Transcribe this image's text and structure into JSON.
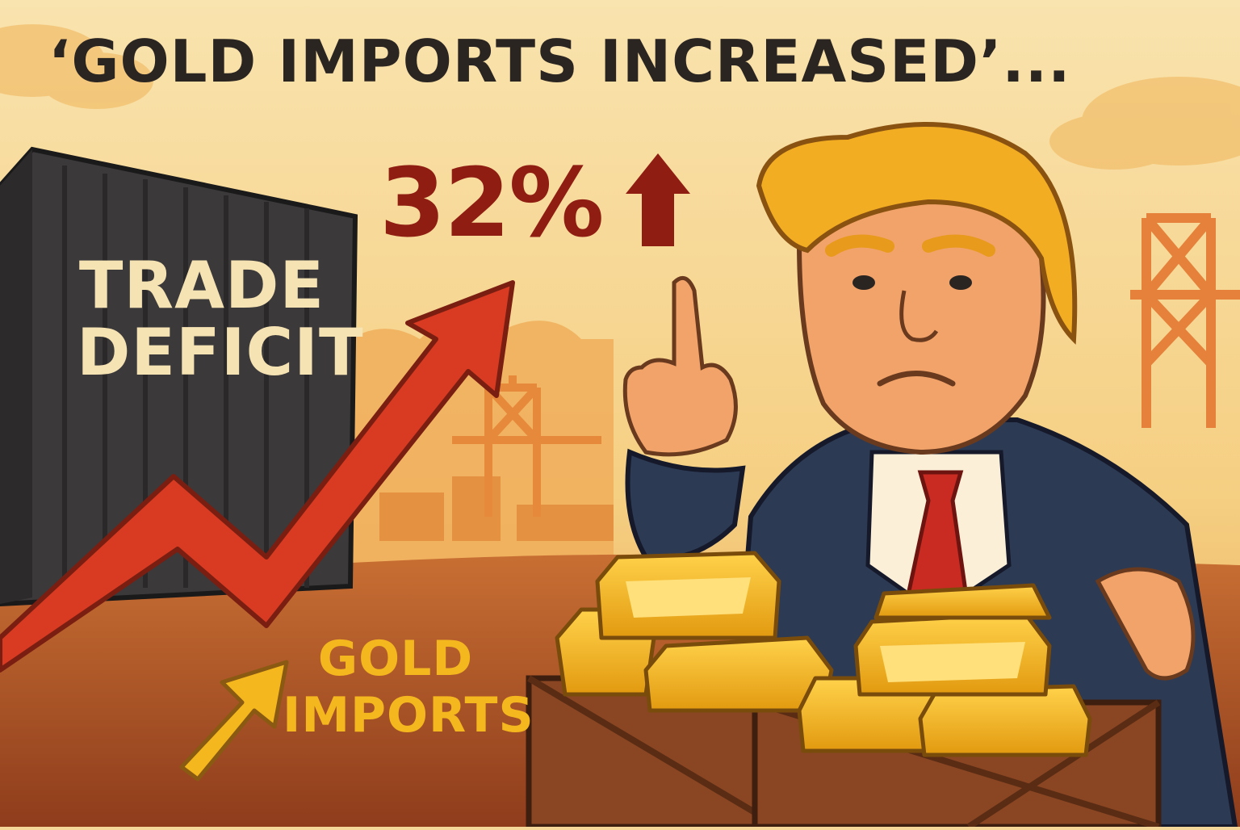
{
  "headline": "‘GOLD IMPORTS INCREASED’...",
  "stat": {
    "value": "32%",
    "direction_icon": "arrow-up-icon"
  },
  "container": {
    "line1": "TRADE",
    "line2": "DEFICIT"
  },
  "gold_label": {
    "line1": "GOLD",
    "line2": "IMPORTS"
  },
  "colors": {
    "sky": "#f6d79a",
    "ground": "#b8572a",
    "headline": "#2b2522",
    "percent": "#8f1d12",
    "trend_arrow": "#d83b22",
    "gold": "#f4b71e",
    "container": "#3c3a3b",
    "suit": "#2c3a54",
    "tie": "#c92a22",
    "hair": "#f2ad22",
    "crate": "#8a4623"
  },
  "icons": [
    "trend-up-arrow-icon",
    "arrow-up-icon",
    "small-up-arrow-icon",
    "gold-bar-icon",
    "crane-icon"
  ]
}
